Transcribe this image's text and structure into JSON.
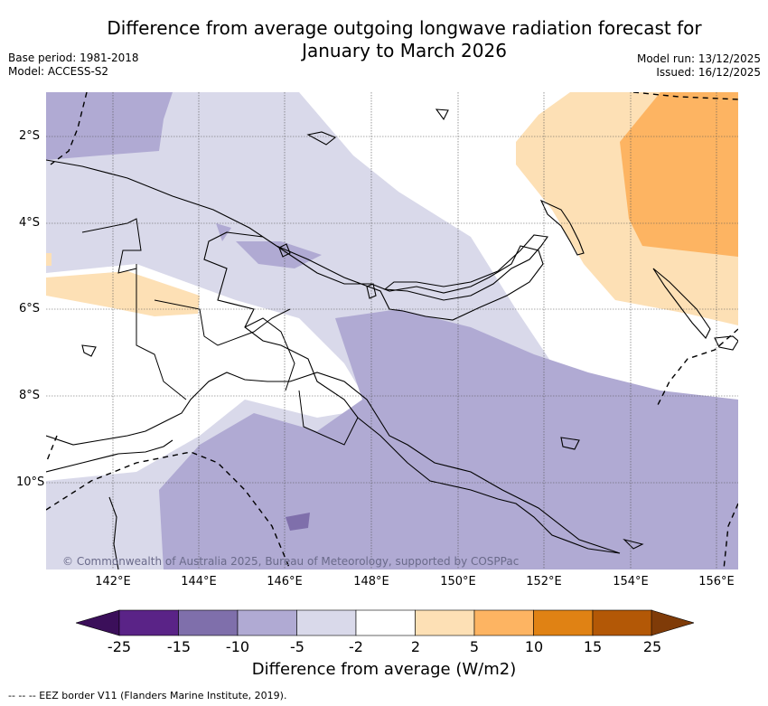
{
  "title": "Difference from average outgoing longwave radiation forecast for January to March 2026",
  "title_line1": "Difference from average outgoing longwave radiation forecast for",
  "title_line2": "January to March 2026",
  "meta": {
    "base_period": "Base period: 1981-2018",
    "model": "Model: ACCESS-S2",
    "model_run": "Model run: 13/12/2025",
    "issued": "Issued: 16/12/2025"
  },
  "map": {
    "lat_labels": [
      "2°S",
      "4°S",
      "6°S",
      "8°S",
      "10°S"
    ],
    "lon_labels": [
      "142°E",
      "144°E",
      "146°E",
      "148°E",
      "150°E",
      "152°E",
      "154°E",
      "156°E"
    ],
    "copyright": "© Commonwealth of Australia 2025, Bureau of Meteorology, supported by COSPPac"
  },
  "colorbar": {
    "title": "Difference from average (W/m2)",
    "labels": [
      "-25",
      "-15",
      "-10",
      "-5",
      "-2",
      "2",
      "5",
      "10",
      "15",
      "25"
    ],
    "colors": [
      "#3b0f5a",
      "#5a2387",
      "#7f6fab",
      "#b0aad3",
      "#d9d9ea",
      "#ffffff",
      "#fde0b5",
      "#fdb462",
      "#e08214",
      "#b35806",
      "#7f3b08"
    ]
  },
  "legend": {
    "eez_label": "--  --  -- EEZ border V11 (Flanders Marine Institute, 2019)."
  }
}
